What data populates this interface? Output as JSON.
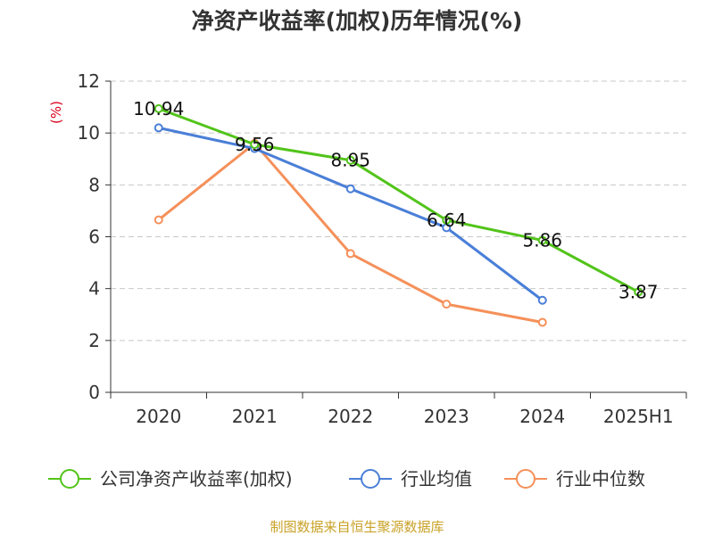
{
  "title": "净资产收益率(加权)历年情况(%)",
  "source": "制图数据来自恒生聚源数据库",
  "chart_data": {
    "type": "line",
    "title": "净资产收益率(加权)历年情况(%)",
    "ylabel": "(%)",
    "xlabel": "",
    "categories": [
      "2020",
      "2021",
      "2022",
      "2023",
      "2024",
      "2025H1"
    ],
    "ylim": [
      0,
      12
    ],
    "yticks": [
      0,
      2,
      4,
      6,
      8,
      10,
      12
    ],
    "grid": true,
    "legend_position": "bottom",
    "series": [
      {
        "name": "公司净资产收益率(加权)",
        "color": "#52c41a",
        "values": [
          10.94,
          9.56,
          8.95,
          6.64,
          5.86,
          3.87
        ],
        "labels": [
          "10.94",
          "9.56",
          "8.95",
          "6.64",
          "5.86",
          "3.87"
        ],
        "show_labels": true
      },
      {
        "name": "行业均值",
        "color": "#4a7fd8",
        "values": [
          10.2,
          9.4,
          7.85,
          6.35,
          3.55,
          null
        ],
        "show_labels": false
      },
      {
        "name": "行业中位数",
        "color": "#f5905a",
        "values": [
          6.65,
          9.6,
          5.35,
          3.4,
          2.7,
          null
        ],
        "show_labels": false
      }
    ]
  }
}
